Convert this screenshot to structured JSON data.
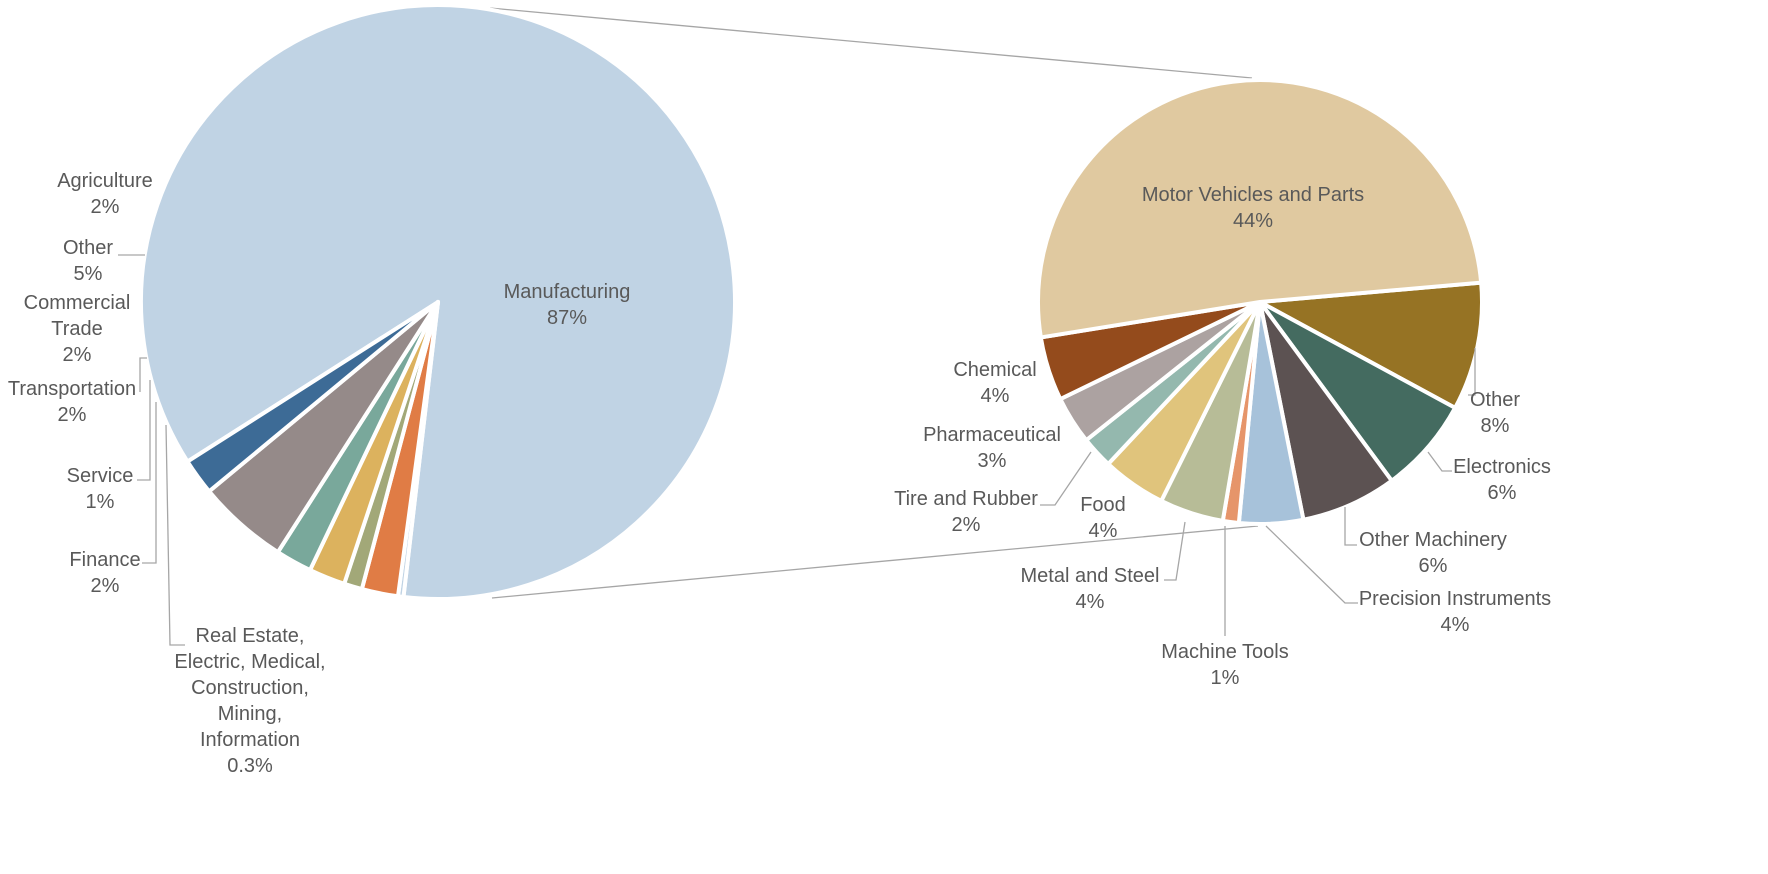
{
  "chart_data": [
    {
      "type": "pie",
      "slices": [
        {
          "label": "Manufacturing",
          "value": 87,
          "display": "87%",
          "color": "#c0d3e4"
        },
        {
          "label": "Real Estate, Electric, Medical, Construction, Mining, Information",
          "value": 0.3,
          "display": "0.3%",
          "color": "#c0d3e4"
        },
        {
          "label": "Finance",
          "value": 2,
          "display": "2%",
          "color": "#e07c45"
        },
        {
          "label": "Service",
          "value": 1,
          "display": "1%",
          "color": "#a2a878"
        },
        {
          "label": "Transportation",
          "value": 2,
          "display": "2%",
          "color": "#dcb25e"
        },
        {
          "label": "Commercial Trade",
          "value": 2,
          "display": "2%",
          "color": "#79a89b"
        },
        {
          "label": "Other",
          "value": 5,
          "display": "5%",
          "color": "#958a89"
        },
        {
          "label": "Agriculture",
          "value": 2,
          "display": "2%",
          "color": "#3d6b96"
        }
      ]
    },
    {
      "type": "pie",
      "slices": [
        {
          "label": "Other",
          "value": 8,
          "display": "8%",
          "color": "#967324"
        },
        {
          "label": "Electronics",
          "value": 6,
          "display": "6%",
          "color": "#446b60"
        },
        {
          "label": "Other Machinery",
          "value": 6,
          "display": "6%",
          "color": "#5c5252"
        },
        {
          "label": "Precision Instruments",
          "value": 4,
          "display": "4%",
          "color": "#a7c2da"
        },
        {
          "label": "Machine Tools",
          "value": 1,
          "display": "1%",
          "color": "#e6956a"
        },
        {
          "label": "Metal and Steel",
          "value": 4,
          "display": "4%",
          "color": "#b7bc97"
        },
        {
          "label": "Food",
          "value": 4,
          "display": "4%",
          "color": "#e0c47c"
        },
        {
          "label": "Tire and Rubber",
          "value": 2,
          "display": "2%",
          "color": "#94b8ae"
        },
        {
          "label": "Pharmaceutical",
          "value": 3,
          "display": "3%",
          "color": "#aca2a1"
        },
        {
          "label": "Chemical",
          "value": 4,
          "display": "4%",
          "color": "#944b1c"
        },
        {
          "label": "Motor Vehicles and Parts",
          "value": 44,
          "display": "44%",
          "color": "#e0c9a0"
        }
      ]
    }
  ]
}
